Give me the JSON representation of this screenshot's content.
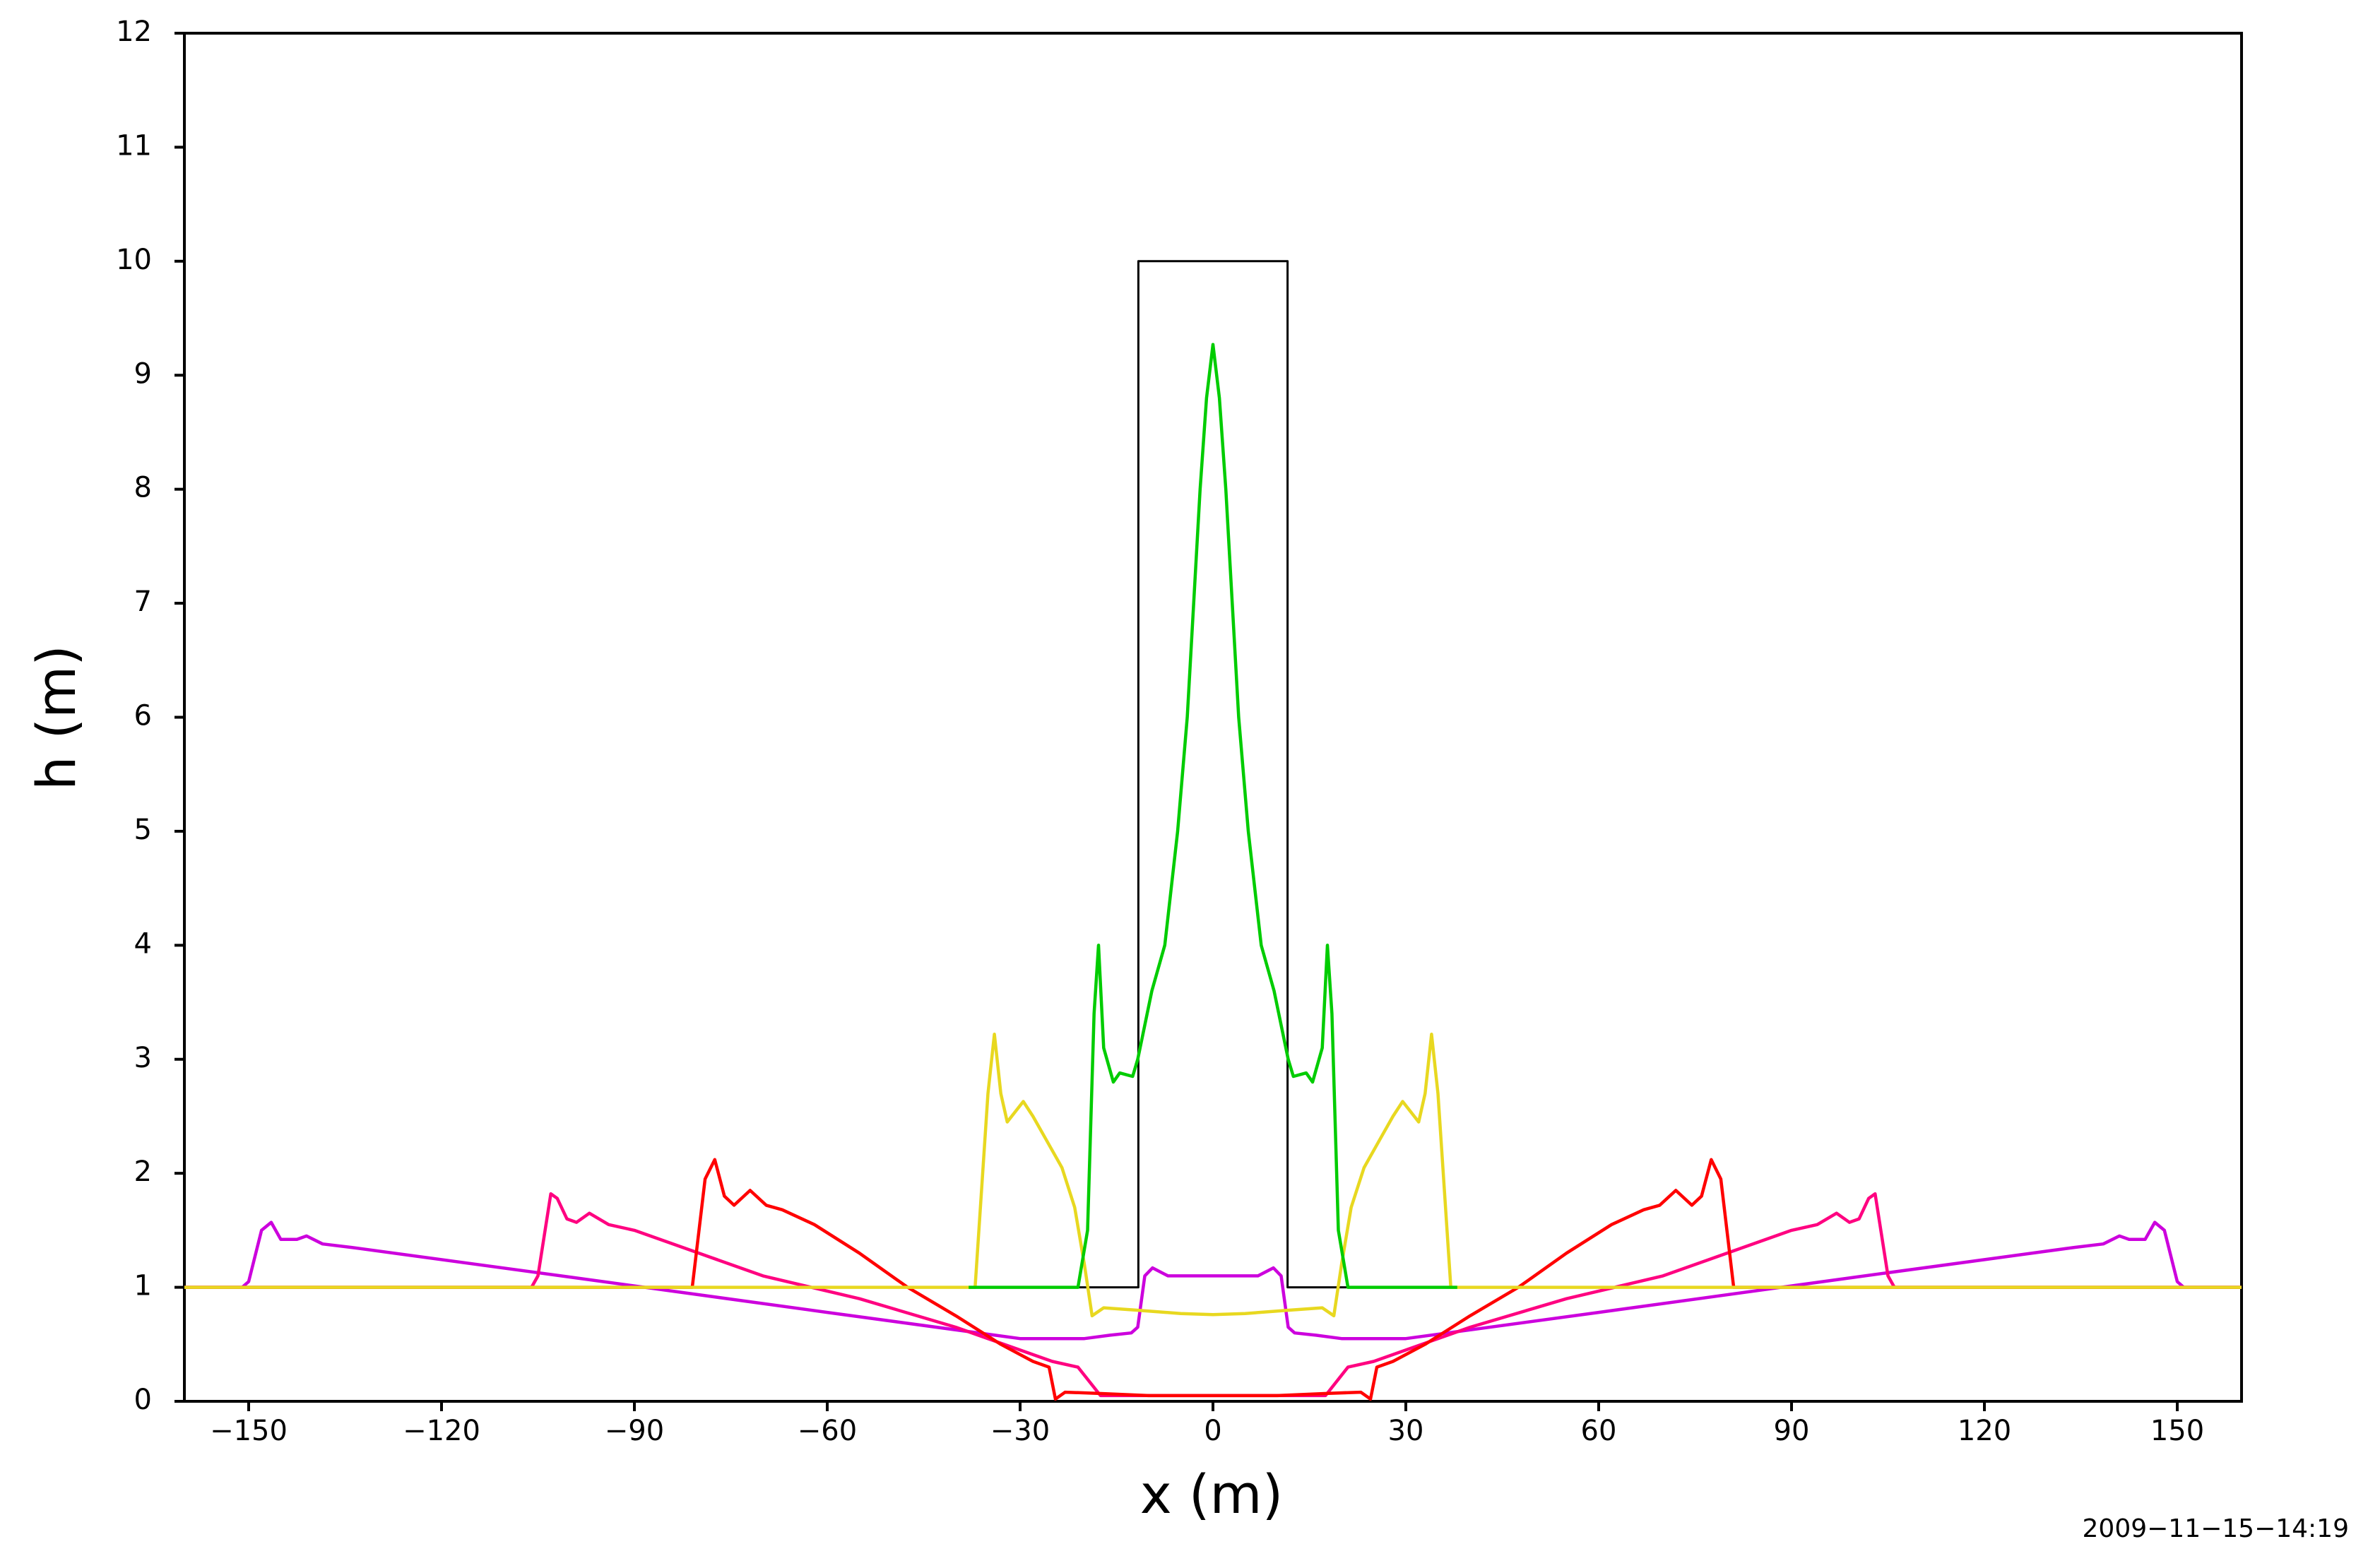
{
  "chart_data": {
    "type": "line",
    "xlabel": "x (m)",
    "ylabel": "h (m)",
    "annotation": "2009−11−15−14:19",
    "xlim": [
      -160,
      160
    ],
    "ylim": [
      0,
      12
    ],
    "xticks": [
      {
        "value": -150,
        "label": "−150"
      },
      {
        "value": -120,
        "label": "−120"
      },
      {
        "value": -90,
        "label": "−90"
      },
      {
        "value": -60,
        "label": "−60"
      },
      {
        "value": -30,
        "label": "−30"
      },
      0,
      30,
      60,
      90,
      120,
      150
    ],
    "yticks": [
      0,
      1,
      2,
      3,
      4,
      5,
      6,
      7,
      8,
      9,
      10,
      11,
      12
    ],
    "series": [
      {
        "color": "#000000",
        "x": [
          -160,
          -11.6,
          -11.6,
          11.6,
          11.6,
          160
        ],
        "values": [
          1,
          1,
          10,
          10,
          1,
          1
        ]
      },
      {
        "color": "#cc00dd",
        "x": [
          -160,
          -151,
          -150,
          -148,
          -146.5,
          -145,
          -142.5,
          -141,
          -138.5,
          -134,
          -100,
          -60,
          -30,
          -20,
          -16,
          -12.7,
          -11.7,
          -10.6,
          -9.4,
          -7,
          0,
          7,
          9.4,
          10.6,
          11.7,
          12.7,
          16,
          20,
          30,
          60,
          100,
          134,
          138.5,
          141,
          142.5,
          145,
          146.5,
          148,
          150,
          151,
          160
        ],
        "values": [
          1,
          1,
          1.05,
          1.5,
          1.57,
          1.42,
          1.42,
          1.45,
          1.38,
          1.35,
          1.09,
          0.78,
          0.55,
          0.55,
          0.58,
          0.6,
          0.65,
          1.1,
          1.17,
          1.1,
          1.1,
          1.1,
          1.17,
          1.1,
          0.65,
          0.6,
          0.58,
          0.55,
          0.55,
          0.78,
          1.09,
          1.35,
          1.38,
          1.45,
          1.42,
          1.42,
          1.57,
          1.5,
          1.05,
          1,
          1
        ]
      },
      {
        "color": "#ff0080",
        "x": [
          -160,
          -106,
          -105,
          -103,
          -102,
          -100.5,
          -99,
          -97,
          -94,
          -90,
          -85,
          -70,
          -55,
          -40,
          -30,
          -25,
          -21,
          -17.5,
          -10,
          0,
          10,
          17.5,
          21,
          25,
          30,
          40,
          55,
          70,
          85,
          90,
          94,
          97,
          99,
          100.5,
          102,
          103,
          105,
          106,
          160
        ],
        "values": [
          1,
          1,
          1.1,
          1.82,
          1.78,
          1.6,
          1.57,
          1.65,
          1.55,
          1.5,
          1.4,
          1.1,
          0.9,
          0.65,
          0.45,
          0.35,
          0.3,
          0.05,
          0.05,
          0.05,
          0.05,
          0.05,
          0.3,
          0.35,
          0.45,
          0.65,
          0.9,
          1.1,
          1.4,
          1.5,
          1.55,
          1.65,
          1.57,
          1.6,
          1.78,
          1.82,
          1.1,
          1,
          1
        ]
      },
      {
        "color": "#ff0000",
        "x": [
          -160,
          -81,
          -79,
          -77.5,
          -76,
          -74.5,
          -72,
          -69.5,
          -67,
          -62,
          -55,
          -47.5,
          -40,
          -33,
          -28,
          -25.5,
          -24.5,
          -23,
          -18,
          -10,
          0,
          10,
          18,
          23,
          24.5,
          25.5,
          28,
          33,
          40,
          47.5,
          55,
          62,
          67,
          69.5,
          72,
          74.5,
          76,
          77.5,
          79,
          81,
          160
        ],
        "values": [
          1,
          1,
          1.95,
          2.12,
          1.8,
          1.72,
          1.85,
          1.72,
          1.68,
          1.55,
          1.3,
          1,
          0.75,
          0.5,
          0.35,
          0.3,
          0.02,
          0.08,
          0.07,
          0.05,
          0.05,
          0.05,
          0.07,
          0.08,
          0.02,
          0.3,
          0.35,
          0.5,
          0.75,
          1,
          1.3,
          1.55,
          1.68,
          1.72,
          1.85,
          1.72,
          1.8,
          2.12,
          1.95,
          1,
          1
        ]
      },
      {
        "color": "#e8d820",
        "x": [
          -160,
          -37,
          -35,
          -34,
          -33,
          -32,
          -29.5,
          -28,
          -26,
          -23.5,
          -21.5,
          -20,
          -18.8,
          -17,
          -12,
          -5,
          0,
          5,
          12,
          17,
          18.8,
          20,
          21.5,
          23.5,
          26,
          28,
          29.5,
          32,
          33,
          34,
          35,
          37,
          160
        ],
        "values": [
          1,
          1,
          2.7,
          3.22,
          2.7,
          2.45,
          2.63,
          2.5,
          2.3,
          2.05,
          1.7,
          1.2,
          0.75,
          0.82,
          0.8,
          0.77,
          0.76,
          0.77,
          0.8,
          0.82,
          0.75,
          1.2,
          1.7,
          2.05,
          2.3,
          2.5,
          2.63,
          2.45,
          2.7,
          3.22,
          2.7,
          1,
          1
        ]
      },
      {
        "color": "#00cc00",
        "x": [
          -38,
          -21,
          -19.5,
          -18.5,
          -17.8,
          -17,
          -15.5,
          -14.5,
          -12.5,
          -11.7,
          -9.5,
          -7.5,
          -5.5,
          -4,
          -3,
          -2,
          -1,
          0,
          1,
          2,
          3,
          4,
          5.5,
          7.5,
          9.5,
          11.7,
          12.5,
          14.5,
          15.5,
          17,
          17.8,
          18.5,
          19.5,
          21,
          38
        ],
        "values": [
          1,
          1,
          1.5,
          3.4,
          4,
          3.1,
          2.8,
          2.88,
          2.85,
          3,
          3.6,
          4,
          5,
          6,
          7,
          8,
          8.8,
          9.27,
          8.8,
          8,
          7,
          6,
          5,
          4,
          3.6,
          3,
          2.85,
          2.88,
          2.8,
          3.1,
          4,
          3.4,
          1.5,
          1,
          1
        ]
      }
    ]
  }
}
